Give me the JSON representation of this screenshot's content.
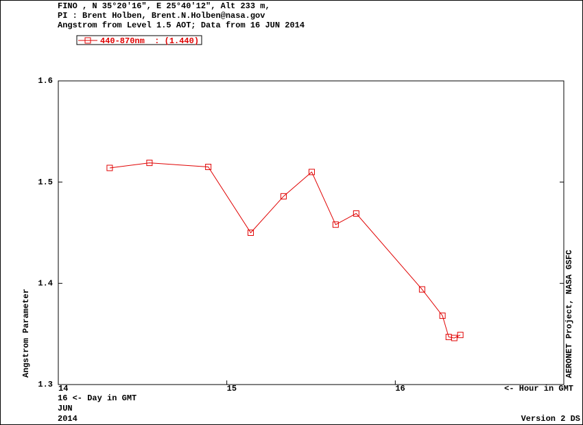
{
  "chart_data": {
    "type": "line",
    "title_lines": [
      "FINO , N 35°20'16\", E 25°40'12\", Alt 233 m,",
      "PI : Brent Holben, Brent.N.Holben@nasa.gov",
      "Angstrom from Level 1.5 AOT; Data from 16 JUN 2014"
    ],
    "ylabel": "Angstrom Parameter",
    "xlabel": "<- Hour in GMT",
    "date_labels": [
      "16  <- Day in GMT",
      "JUN",
      "2014"
    ],
    "side_note": "AERONET Project, NASA GSFC",
    "version": "Version 2 DS",
    "x": [
      14.305,
      14.541,
      14.89,
      15.142,
      15.337,
      15.504,
      15.646,
      15.768,
      16.159,
      16.28,
      16.317,
      16.35,
      16.386
    ],
    "series": [
      {
        "name": "440-870nm  : (1.440)",
        "color": "#e00000",
        "values": [
          1.514,
          1.519,
          1.515,
          1.45,
          1.486,
          1.51,
          1.458,
          1.469,
          1.394,
          1.368,
          1.347,
          1.346,
          1.349
        ]
      }
    ],
    "xlim": [
      14,
      17
    ],
    "xticks": [
      14,
      15,
      16
    ],
    "ylim": [
      1.3,
      1.6
    ],
    "yticks": [
      1.3,
      1.4,
      1.5,
      1.6
    ]
  }
}
